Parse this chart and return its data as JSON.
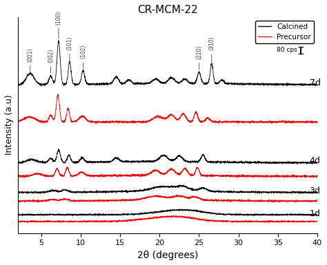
{
  "title": "CR-MCM-22",
  "xlabel": "2θ (degrees)",
  "ylabel": "Intensity (a.u)",
  "xlim": [
    2,
    40
  ],
  "ylim": [
    -1.5,
    16.0
  ],
  "background_color": "#ffffff",
  "calcined_color": "black",
  "precursor_color": "red",
  "xticks": [
    5,
    10,
    15,
    20,
    25,
    30,
    35,
    40
  ],
  "scale_bar_text": "80 cps",
  "peak_positions": {
    "(001)": 3.6,
    "(002)": 6.2,
    "(100)": 7.2,
    "(101)": 8.6,
    "(102)": 10.3,
    "(220)": 25.0,
    "(310)": 26.6
  },
  "offsets": {
    "1d_black": 0.0,
    "1d_red": -0.55,
    "3d_black": 1.8,
    "3d_red": 1.1,
    "4d_black": 4.2,
    "4d_red": 3.1,
    "7d_black": 10.5,
    "7d_red": 7.5
  },
  "noise_seed": 12
}
